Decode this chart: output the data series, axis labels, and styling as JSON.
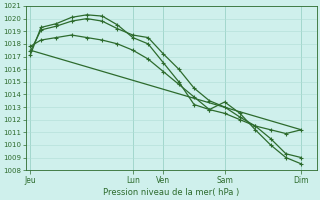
{
  "xlabel": "Pression niveau de la mer( hPa )",
  "bg_color": "#cff0ec",
  "line_color": "#2d6b2d",
  "grid_color_minor": "#b0ddd5",
  "grid_color_major": "#88ccbb",
  "ylim": [
    1008,
    1021
  ],
  "xlim": [
    0,
    9.5
  ],
  "yticks": [
    1008,
    1009,
    1010,
    1011,
    1012,
    1013,
    1014,
    1015,
    1016,
    1017,
    1018,
    1019,
    1020
  ],
  "day_labels": [
    "Jeu",
    "Lun",
    "Ven",
    "Sam",
    "Dim"
  ],
  "day_positions": [
    0.15,
    3.5,
    4.5,
    6.5,
    9.0
  ],
  "vline_positions": [
    0.15,
    3.5,
    4.5,
    6.5,
    9.0
  ],
  "lines": [
    {
      "x": [
        0.15,
        0.5,
        1.0,
        1.5,
        2.0,
        2.5,
        3.0,
        3.5,
        4.0,
        4.5,
        5.0,
        5.5,
        6.0,
        6.5,
        7.0,
        7.5,
        8.0,
        8.5,
        9.0
      ],
      "y": [
        1017.1,
        1019.3,
        1019.6,
        1020.1,
        1020.3,
        1020.2,
        1019.5,
        1018.5,
        1018.0,
        1016.5,
        1015.0,
        1013.2,
        1012.8,
        1013.4,
        1012.5,
        1011.2,
        1010.0,
        1009.0,
        1008.5
      ]
    },
    {
      "x": [
        0.15,
        0.5,
        1.0,
        1.5,
        2.0,
        2.5,
        3.0,
        3.5,
        4.0,
        4.5,
        5.0,
        5.5,
        6.0,
        6.5,
        7.0,
        7.5,
        8.0,
        8.5,
        9.0
      ],
      "y": [
        1017.4,
        1019.1,
        1019.4,
        1019.8,
        1020.0,
        1019.8,
        1019.2,
        1018.7,
        1018.5,
        1017.2,
        1016.0,
        1014.5,
        1013.5,
        1013.0,
        1012.2,
        1011.5,
        1010.5,
        1009.3,
        1009.0
      ]
    },
    {
      "x": [
        0.15,
        9.0
      ],
      "y": [
        1017.5,
        1011.2
      ]
    },
    {
      "x": [
        0.15,
        0.5,
        1.0,
        1.5,
        2.0,
        2.5,
        3.0,
        3.5,
        4.0,
        4.5,
        5.0,
        5.5,
        6.0,
        6.5,
        7.0,
        7.5,
        8.0,
        8.5,
        9.0
      ],
      "y": [
        1017.8,
        1018.3,
        1018.5,
        1018.7,
        1018.5,
        1018.3,
        1018.0,
        1017.5,
        1016.8,
        1015.8,
        1014.8,
        1013.8,
        1012.8,
        1012.5,
        1012.0,
        1011.5,
        1011.2,
        1010.9,
        1011.2
      ]
    }
  ]
}
